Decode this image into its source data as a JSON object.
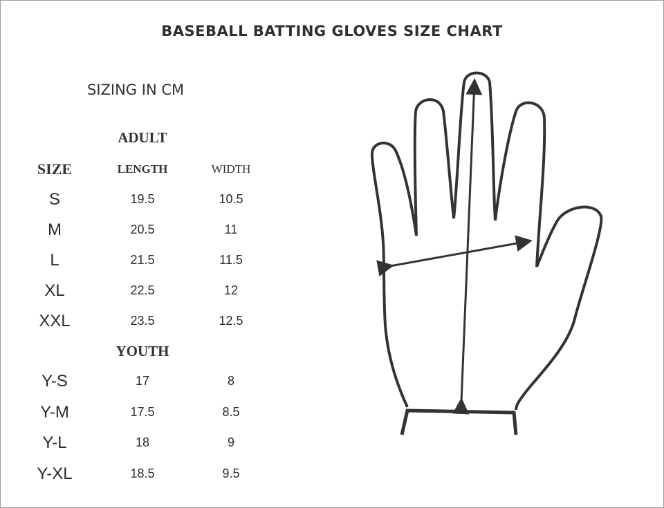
{
  "title": "BASEBALL BATTING GLOVES SIZE CHART",
  "subtitle": "SIZING IN CM",
  "headers": {
    "size": "SIZE",
    "length": "LENGTH",
    "width": "WIDTH",
    "adult": "ADULT",
    "youth": "YOUTH"
  },
  "adult": [
    {
      "size": "S",
      "length": "19.5",
      "width": "10.5"
    },
    {
      "size": "M",
      "length": "20.5",
      "width": "11"
    },
    {
      "size": "L",
      "length": "21.5",
      "width": "11.5"
    },
    {
      "size": "XL",
      "length": "22.5",
      "width": "12"
    },
    {
      "size": "XXL",
      "length": "23.5",
      "width": "12.5"
    }
  ],
  "youth": [
    {
      "size": "Y-S",
      "length": "17",
      "width": "8"
    },
    {
      "size": "Y-M",
      "length": "17.5",
      "width": "8.5"
    },
    {
      "size": "Y-L",
      "length": "18",
      "width": "9"
    },
    {
      "size": "Y-XL",
      "length": "18.5",
      "width": "9.5"
    }
  ]
}
